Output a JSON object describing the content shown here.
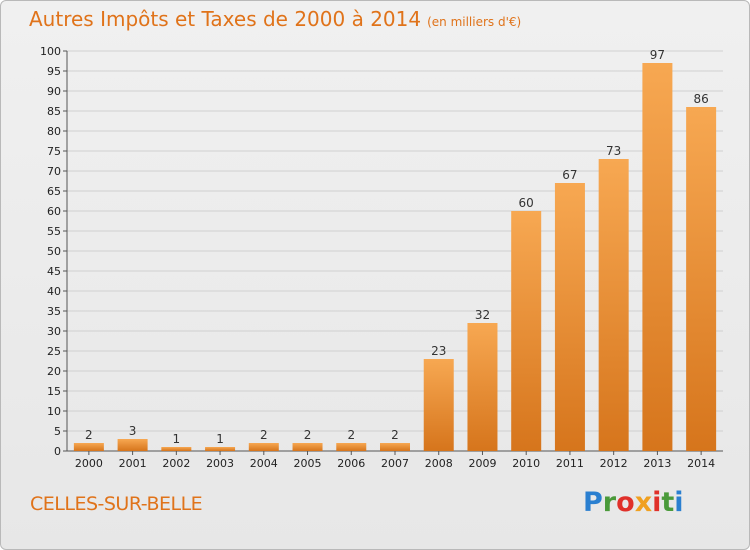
{
  "title": "Autres Impôts et Taxes de 2000 à 2014",
  "unit_note": "(en milliers d'€)",
  "commune": "CELLES-SUR-BELLE",
  "logo": {
    "p": "P",
    "r": "r",
    "o": "o",
    "x": "x",
    "i1": "i",
    "t": "t",
    "i2": "i"
  },
  "colors": {
    "bar_light": "#f6a650",
    "bar_dark": "#d8781e",
    "title": "#e0731a"
  },
  "chart_data": {
    "type": "bar",
    "title": "Autres Impôts et Taxes de 2000 à 2014",
    "xlabel": "",
    "ylabel": "",
    "ylim": [
      0,
      100
    ],
    "yticks": [
      0,
      5,
      10,
      15,
      20,
      25,
      30,
      35,
      40,
      45,
      50,
      55,
      60,
      65,
      70,
      75,
      80,
      85,
      90,
      95,
      100
    ],
    "grid": true,
    "categories": [
      "2000",
      "2001",
      "2002",
      "2003",
      "2004",
      "2005",
      "2006",
      "2007",
      "2008",
      "2009",
      "2010",
      "2011",
      "2012",
      "2013",
      "2014"
    ],
    "values": [
      2,
      3,
      1,
      1,
      2,
      2,
      2,
      2,
      23,
      32,
      60,
      67,
      73,
      97,
      86
    ]
  }
}
